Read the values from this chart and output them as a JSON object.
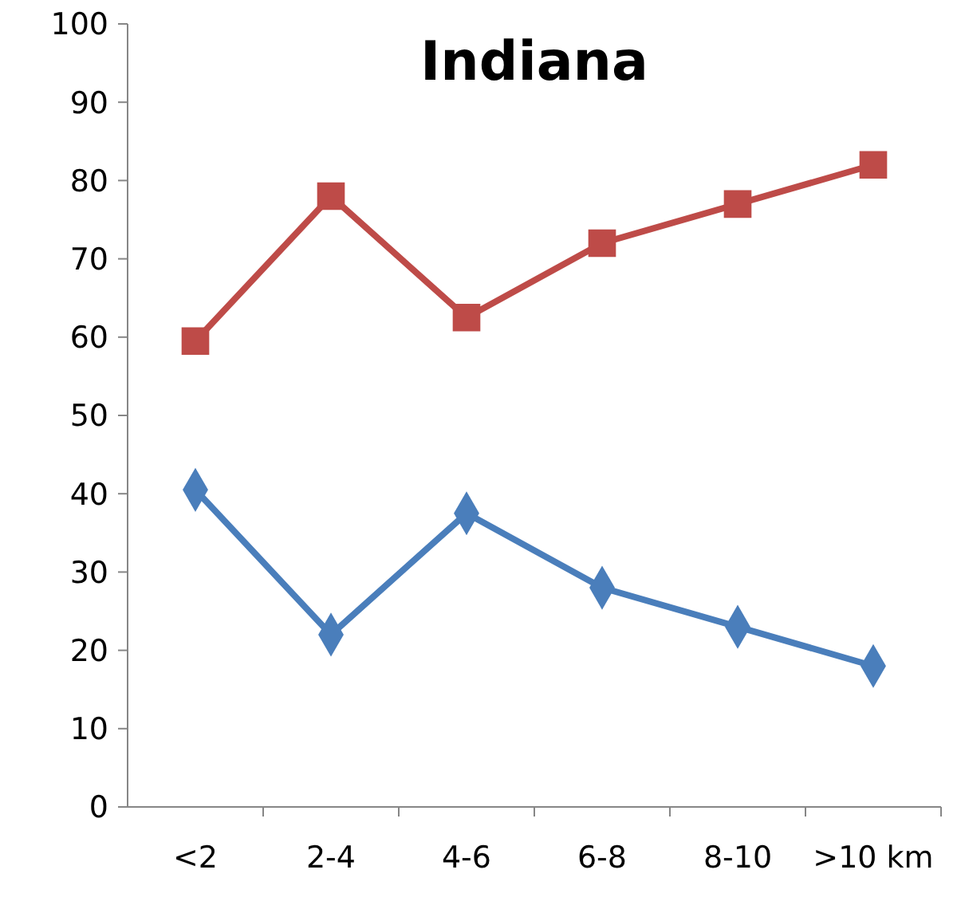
{
  "chart_data": {
    "type": "line",
    "title": "Indiana",
    "categories": [
      "<2",
      "2-4",
      "4-6",
      "6-8",
      "8-10",
      ">10 km"
    ],
    "series": [
      {
        "color": "#be4b48",
        "marker": "square",
        "values": [
          59.5,
          78,
          62.5,
          72,
          77,
          82
        ]
      },
      {
        "color": "#4a7ebb",
        "marker": "diamond",
        "values": [
          40.5,
          22,
          37.5,
          28,
          23,
          18
        ]
      }
    ],
    "ylim": [
      0,
      100
    ],
    "yticks": [
      0,
      10,
      20,
      30,
      40,
      50,
      60,
      70,
      80,
      90,
      100
    ]
  }
}
